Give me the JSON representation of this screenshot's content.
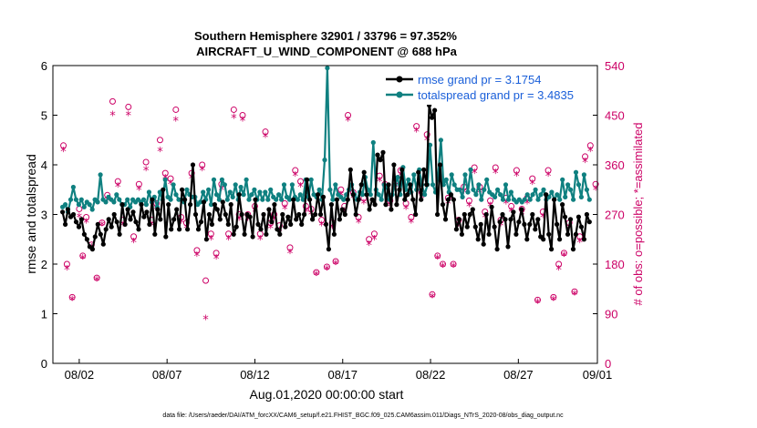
{
  "chart_data": {
    "type": "line",
    "title": "Southern Hemisphere 32901 / 33796 = 97.352%",
    "subtitle": "AIRCRAFT_U_WIND_COMPONENT @ 688 hPa",
    "xlabel": "Aug.01,2020 00:00:00 start",
    "ylabel": "rmse and totalspread",
    "y2label": "# of obs: o=possible; *=assimilated",
    "footnote": "data file: /Users/raeder/DAI/ATM_forcXX/CAM6_setup/f.e21.FHIST_BGC.f09_025.CAM6assim.011/Diags_NTrS_2020-08/obs_diag_output.nc",
    "xlim": [
      0.5,
      31.5
    ],
    "ylim": [
      0,
      6
    ],
    "y2lim": [
      0,
      540
    ],
    "x_ticks": [
      {
        "value": 2,
        "label": "08/02"
      },
      {
        "value": 7,
        "label": "08/07"
      },
      {
        "value": 12,
        "label": "08/12"
      },
      {
        "value": 17,
        "label": "08/17"
      },
      {
        "value": 22,
        "label": "08/22"
      },
      {
        "value": 27,
        "label": "08/27"
      },
      {
        "value": 32,
        "label": "09/01"
      }
    ],
    "y_ticks": [
      0,
      1,
      2,
      3,
      4,
      5,
      6
    ],
    "y2_ticks": [
      0,
      90,
      180,
      270,
      360,
      450,
      540
    ],
    "colors": {
      "rmse": "#000000",
      "spread": "#0f8080",
      "obs": "#cc0066",
      "legend_text": "#1a5fd9"
    },
    "series": [
      {
        "name": "rmse grand pr = 3.1754",
        "key": "rmse",
        "values": [
          3.05,
          2.8,
          3.1,
          2.95,
          3.0,
          2.85,
          2.75,
          2.9,
          2.6,
          2.5,
          2.35,
          2.3,
          2.55,
          2.8,
          2.6,
          2.4,
          2.7,
          2.9,
          2.75,
          3.0,
          2.85,
          2.6,
          3.2,
          2.8,
          3.1,
          2.9,
          3.05,
          2.85,
          2.7,
          3.2,
          2.95,
          3.05,
          2.8,
          3.3,
          2.6,
          3.1,
          2.9,
          3.5,
          2.55,
          3.2,
          2.7,
          2.9,
          3.1,
          2.7,
          3.5,
          3.3,
          2.7,
          3.2,
          4.0,
          3.0,
          2.7,
          2.85,
          3.25,
          2.5,
          3.0,
          2.8,
          3.2,
          3.1,
          2.9,
          3.25,
          3.0,
          2.8,
          3.2,
          2.6,
          2.75,
          3.4,
          3.0,
          2.6,
          3.0,
          2.95,
          2.55,
          3.3,
          2.8,
          2.7,
          3.0,
          2.6,
          3.1,
          2.85,
          3.2,
          2.7,
          2.6,
          3.0,
          2.75,
          2.95,
          2.8,
          3.3,
          2.9,
          3.0,
          2.8,
          3.0,
          3.7,
          3.3,
          2.9,
          3.0,
          3.4,
          3.0,
          3.35,
          2.8,
          2.3,
          3.2,
          2.6,
          3.3,
          2.9,
          3.1,
          3.0,
          3.3,
          3.9,
          3.4,
          3.0,
          3.3,
          3.6,
          3.85,
          3.4,
          3.1,
          3.3,
          3.2,
          4.2,
          4.1,
          4.25,
          3.2,
          3.6,
          3.1,
          4.0,
          3.2,
          3.5,
          3.9,
          3.3,
          3.4,
          3.6,
          3.3,
          3.0,
          3.85,
          3.3,
          3.9,
          3.6,
          5.2,
          4.95,
          5.1,
          3.0,
          4.0,
          3.2,
          2.9,
          3.3,
          3.4,
          3.3,
          2.7,
          2.9,
          2.6,
          3.0,
          2.75,
          3.0,
          3.1,
          2.75,
          2.5,
          2.8,
          2.4,
          3.0,
          2.6,
          3.15,
          2.75,
          2.3,
          2.85,
          3.0,
          2.9,
          2.35,
          2.9,
          3.05,
          2.6,
          2.85,
          3.1,
          2.8,
          2.5,
          2.8,
          3.0,
          2.7,
          2.9,
          2.55,
          2.5,
          3.4,
          2.6,
          2.3,
          3.3,
          2.8,
          2.5,
          3.2,
          2.95,
          2.6,
          2.9,
          2.3,
          2.6,
          2.95,
          2.75,
          2.5,
          3.0,
          2.85
        ]
      },
      {
        "name": "totalspread grand pr = 3.4835",
        "key": "spread",
        "values": [
          3.15,
          3.2,
          3.05,
          3.3,
          3.55,
          3.3,
          3.2,
          3.3,
          3.15,
          3.25,
          3.2,
          3.1,
          3.3,
          3.25,
          3.8,
          3.3,
          3.25,
          3.35,
          3.3,
          3.25,
          3.4,
          3.3,
          3.2,
          3.2,
          3.3,
          3.15,
          3.3,
          3.25,
          3.3,
          3.25,
          3.3,
          3.2,
          3.45,
          3.25,
          3.35,
          3.15,
          3.45,
          3.3,
          3.7,
          3.35,
          3.3,
          3.6,
          3.4,
          3.3,
          3.3,
          3.25,
          3.5,
          3.4,
          3.35,
          3.35,
          3.2,
          3.25,
          3.45,
          3.3,
          3.5,
          3.2,
          3.7,
          3.4,
          3.3,
          3.7,
          3.6,
          3.3,
          3.45,
          3.35,
          3.6,
          3.3,
          3.55,
          3.4,
          3.7,
          3.3,
          3.4,
          3.5,
          3.3,
          3.45,
          3.3,
          3.45,
          3.3,
          3.5,
          3.35,
          3.3,
          3.4,
          3.3,
          3.6,
          3.35,
          3.3,
          3.6,
          3.35,
          3.3,
          3.4,
          3.3,
          3.7,
          3.35,
          3.7,
          3.4,
          3.35,
          3.5,
          3.3,
          4.1,
          5.95,
          3.5,
          3.3,
          3.6,
          3.4,
          3.35,
          3.3,
          3.4,
          3.5,
          3.6,
          3.4,
          3.3,
          3.45,
          3.4,
          3.75,
          3.5,
          3.4,
          4.45,
          3.5,
          3.4,
          3.3,
          3.6,
          3.55,
          3.3,
          3.4,
          3.6,
          3.75,
          3.4,
          3.95,
          3.5,
          3.7,
          3.45,
          3.8,
          3.5,
          3.9,
          3.6,
          3.4,
          3.6,
          4.4,
          3.6,
          3.45,
          3.8,
          4.5,
          3.6,
          3.7,
          3.45,
          3.8,
          3.6,
          3.5,
          3.5,
          3.35,
          3.8,
          3.45,
          3.9,
          3.5,
          3.4,
          3.6,
          3.3,
          3.5,
          3.7,
          3.45,
          3.4,
          3.35,
          3.5,
          3.4,
          3.3,
          3.6,
          3.3,
          3.45,
          3.3,
          3.25,
          3.3,
          3.25,
          3.3,
          3.4,
          3.3,
          3.4,
          3.5,
          3.3,
          3.4,
          3.5,
          3.3,
          3.35,
          3.45,
          3.3,
          3.4,
          3.3,
          3.7,
          3.35,
          3.6,
          3.5,
          3.3,
          3.85,
          3.6,
          3.35,
          3.8,
          3.5,
          3.3
        ]
      }
    ],
    "obs_possible": [
      [
        1.1,
        395
      ],
      [
        1.3,
        180
      ],
      [
        1.6,
        120
      ],
      [
        2.0,
        280
      ],
      [
        2.2,
        195
      ],
      [
        2.4,
        265
      ],
      [
        2.7,
        215
      ],
      [
        3.0,
        155
      ],
      [
        3.3,
        255
      ],
      [
        3.6,
        305
      ],
      [
        3.9,
        475
      ],
      [
        4.2,
        330
      ],
      [
        4.5,
        260
      ],
      [
        4.8,
        465
      ],
      [
        5.1,
        230
      ],
      [
        5.4,
        325
      ],
      [
        5.8,
        365
      ],
      [
        6.1,
        260
      ],
      [
        6.4,
        290
      ],
      [
        6.6,
        405
      ],
      [
        6.9,
        345
      ],
      [
        7.2,
        335
      ],
      [
        7.5,
        460
      ],
      [
        7.8,
        265
      ],
      [
        8.1,
        255
      ],
      [
        8.4,
        345
      ],
      [
        8.7,
        205
      ],
      [
        9.0,
        360
      ],
      [
        9.2,
        150
      ],
      [
        9.5,
        235
      ],
      [
        9.8,
        200
      ],
      [
        10.1,
        325
      ],
      [
        10.5,
        235
      ],
      [
        10.8,
        460
      ],
      [
        11.1,
        270
      ],
      [
        11.3,
        450
      ],
      [
        11.6,
        270
      ],
      [
        12.0,
        285
      ],
      [
        12.3,
        235
      ],
      [
        12.6,
        420
      ],
      [
        12.9,
        255
      ],
      [
        13.1,
        270
      ],
      [
        13.4,
        250
      ],
      [
        13.7,
        290
      ],
      [
        14.0,
        210
      ],
      [
        14.3,
        350
      ],
      [
        14.6,
        330
      ],
      [
        14.9,
        285
      ],
      [
        15.2,
        280
      ],
      [
        15.5,
        165
      ],
      [
        15.8,
        260
      ],
      [
        16.1,
        175
      ],
      [
        16.4,
        255
      ],
      [
        16.6,
        185
      ],
      [
        16.9,
        315
      ],
      [
        17.1,
        285
      ],
      [
        17.3,
        450
      ],
      [
        17.6,
        310
      ],
      [
        17.9,
        265
      ],
      [
        18.2,
        300
      ],
      [
        18.5,
        225
      ],
      [
        18.8,
        235
      ],
      [
        19.1,
        340
      ],
      [
        19.4,
        325
      ],
      [
        19.7,
        295
      ],
      [
        20.0,
        330
      ],
      [
        20.3,
        350
      ],
      [
        20.6,
        290
      ],
      [
        20.9,
        265
      ],
      [
        21.2,
        430
      ],
      [
        21.5,
        310
      ],
      [
        21.8,
        415
      ],
      [
        22.1,
        125
      ],
      [
        22.4,
        195
      ],
      [
        22.7,
        180
      ],
      [
        23.0,
        300
      ],
      [
        23.3,
        180
      ],
      [
        23.6,
        260
      ],
      [
        23.9,
        320
      ],
      [
        24.2,
        295
      ],
      [
        24.5,
        355
      ],
      [
        24.8,
        320
      ],
      [
        25.1,
        275
      ],
      [
        25.4,
        295
      ],
      [
        25.7,
        355
      ],
      [
        26.0,
        260
      ],
      [
        26.3,
        300
      ],
      [
        26.6,
        285
      ],
      [
        26.9,
        350
      ],
      [
        27.2,
        280
      ],
      [
        27.5,
        300
      ],
      [
        27.8,
        335
      ],
      [
        28.1,
        115
      ],
      [
        28.4,
        275
      ],
      [
        28.7,
        350
      ],
      [
        29.0,
        120
      ],
      [
        29.3,
        180
      ],
      [
        29.6,
        200
      ],
      [
        29.9,
        255
      ],
      [
        30.2,
        130
      ],
      [
        30.5,
        230
      ],
      [
        30.8,
        375
      ],
      [
        31.1,
        395
      ],
      [
        31.4,
        325
      ]
    ],
    "obs_assimilated": [
      [
        1.1,
        385
      ],
      [
        1.3,
        170
      ],
      [
        1.6,
        115
      ],
      [
        2.0,
        265
      ],
      [
        2.2,
        190
      ],
      [
        2.4,
        255
      ],
      [
        2.7,
        210
      ],
      [
        3.0,
        150
      ],
      [
        3.3,
        250
      ],
      [
        3.6,
        295
      ],
      [
        3.9,
        450
      ],
      [
        4.2,
        320
      ],
      [
        4.5,
        250
      ],
      [
        4.8,
        450
      ],
      [
        5.1,
        220
      ],
      [
        5.4,
        315
      ],
      [
        5.8,
        350
      ],
      [
        6.1,
        250
      ],
      [
        6.4,
        280
      ],
      [
        6.6,
        385
      ],
      [
        6.9,
        335
      ],
      [
        7.2,
        325
      ],
      [
        7.5,
        440
      ],
      [
        7.8,
        255
      ],
      [
        8.1,
        245
      ],
      [
        8.4,
        335
      ],
      [
        8.7,
        195
      ],
      [
        9.0,
        350
      ],
      [
        9.2,
        80
      ],
      [
        9.5,
        225
      ],
      [
        9.8,
        190
      ],
      [
        10.1,
        315
      ],
      [
        10.5,
        225
      ],
      [
        10.8,
        445
      ],
      [
        11.1,
        260
      ],
      [
        11.3,
        440
      ],
      [
        11.6,
        260
      ],
      [
        12.0,
        275
      ],
      [
        12.3,
        225
      ],
      [
        12.6,
        410
      ],
      [
        12.9,
        245
      ],
      [
        13.1,
        260
      ],
      [
        13.4,
        240
      ],
      [
        13.7,
        280
      ],
      [
        14.0,
        200
      ],
      [
        14.3,
        340
      ],
      [
        14.6,
        320
      ],
      [
        14.9,
        275
      ],
      [
        15.2,
        270
      ],
      [
        15.5,
        160
      ],
      [
        15.8,
        250
      ],
      [
        16.1,
        170
      ],
      [
        16.4,
        245
      ],
      [
        16.6,
        180
      ],
      [
        16.9,
        305
      ],
      [
        17.1,
        275
      ],
      [
        17.3,
        440
      ],
      [
        17.6,
        300
      ],
      [
        17.9,
        255
      ],
      [
        18.2,
        290
      ],
      [
        18.5,
        215
      ],
      [
        18.8,
        225
      ],
      [
        19.1,
        330
      ],
      [
        19.4,
        315
      ],
      [
        19.7,
        285
      ],
      [
        20.0,
        320
      ],
      [
        20.3,
        340
      ],
      [
        20.6,
        280
      ],
      [
        20.9,
        255
      ],
      [
        21.2,
        420
      ],
      [
        21.5,
        300
      ],
      [
        21.8,
        405
      ],
      [
        22.1,
        120
      ],
      [
        22.4,
        190
      ],
      [
        22.7,
        175
      ],
      [
        23.0,
        290
      ],
      [
        23.3,
        175
      ],
      [
        23.6,
        250
      ],
      [
        23.9,
        310
      ],
      [
        24.2,
        285
      ],
      [
        24.5,
        345
      ],
      [
        24.8,
        310
      ],
      [
        25.1,
        265
      ],
      [
        25.4,
        285
      ],
      [
        25.7,
        345
      ],
      [
        26.0,
        250
      ],
      [
        26.3,
        290
      ],
      [
        26.6,
        275
      ],
      [
        26.9,
        340
      ],
      [
        27.2,
        270
      ],
      [
        27.5,
        290
      ],
      [
        27.8,
        325
      ],
      [
        28.1,
        110
      ],
      [
        28.4,
        265
      ],
      [
        28.7,
        340
      ],
      [
        29.0,
        115
      ],
      [
        29.3,
        170
      ],
      [
        29.6,
        195
      ],
      [
        29.9,
        245
      ],
      [
        30.2,
        125
      ],
      [
        30.5,
        220
      ],
      [
        30.8,
        365
      ],
      [
        31.1,
        385
      ],
      [
        31.4,
        315
      ]
    ]
  }
}
